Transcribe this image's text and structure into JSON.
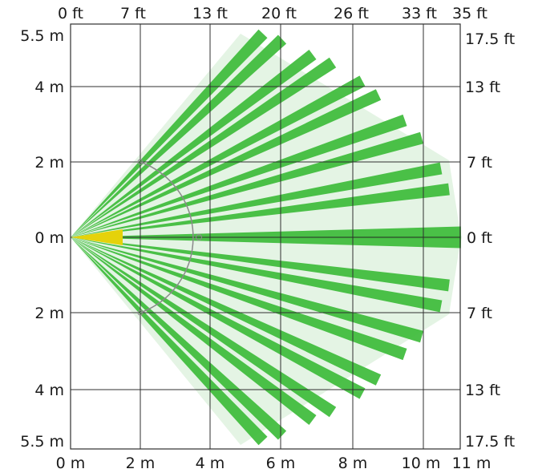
{
  "axes": {
    "top_feet": [
      "0 ft",
      "7 ft",
      "13 ft",
      "20 ft",
      "26 ft",
      "33 ft",
      "35 ft"
    ],
    "left_meters": [
      "5.5 m",
      "4 m",
      "2 m",
      "0 m",
      "2 m",
      "4 m",
      "5.5 m"
    ],
    "right_feet": [
      "17.5 ft",
      "13 ft",
      "7 ft",
      "0 ft",
      "7 ft",
      "13 ft",
      "17.5 ft"
    ],
    "bottom_meters": [
      "0 m",
      "2 m",
      "4 m",
      "6 m",
      "8 m",
      "10 m",
      "11 m"
    ]
  },
  "colors": {
    "beam": "#3dbb3a",
    "coverage": "#e3f3e3",
    "origin": "#e5d20a",
    "grid": "#2f2f2f"
  }
}
